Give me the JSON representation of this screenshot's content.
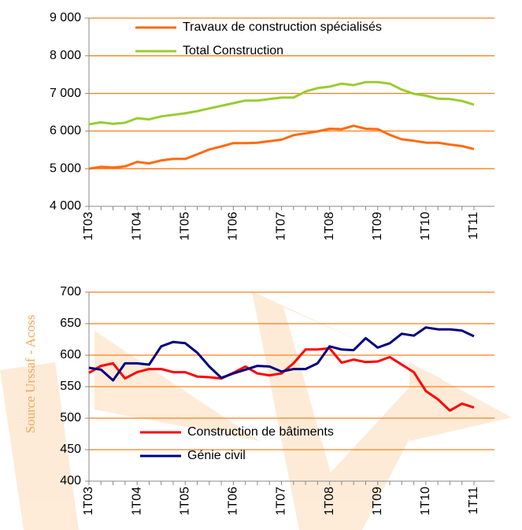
{
  "chart_data": [
    {
      "type": "line",
      "categories": [
        "1T03",
        null,
        null,
        null,
        "1T04",
        null,
        null,
        null,
        "1T05",
        null,
        null,
        null,
        "1T06",
        null,
        null,
        null,
        "1T07",
        null,
        null,
        null,
        "1T08",
        null,
        null,
        null,
        "1T09",
        null,
        null,
        null,
        "1T10",
        null,
        null,
        null,
        "1T11"
      ],
      "series": [
        {
          "name": "Travaux de construction spécialisés",
          "color": "#ff6a10",
          "values": [
            5000,
            5050,
            5030,
            5060,
            5180,
            5140,
            5220,
            5260,
            5260,
            5380,
            5510,
            5590,
            5680,
            5680,
            5690,
            5730,
            5770,
            5890,
            5940,
            5990,
            6060,
            6050,
            6140,
            6060,
            6050,
            5900,
            5780,
            5740,
            5690,
            5690,
            5640,
            5600,
            5520
          ]
        },
        {
          "name": "Total Construction",
          "color": "#99cc33",
          "values": [
            6180,
            6230,
            6190,
            6220,
            6340,
            6310,
            6390,
            6430,
            6470,
            6530,
            6600,
            6670,
            6740,
            6810,
            6810,
            6850,
            6890,
            6890,
            7050,
            7140,
            7180,
            7260,
            7220,
            7300,
            7300,
            7260,
            7100,
            6990,
            6940,
            6860,
            6850,
            6800,
            6700
          ]
        }
      ],
      "ylim": [
        4000,
        9000
      ],
      "yticks": [
        {
          "value": 4000,
          "label": "4 000"
        },
        {
          "value": 5000,
          "label": "5 000"
        },
        {
          "value": 6000,
          "label": "6 000"
        },
        {
          "value": 7000,
          "label": "7 000"
        },
        {
          "value": 8000,
          "label": "8 000"
        },
        {
          "value": 9000,
          "label": "9 000"
        }
      ],
      "grid": true,
      "grid_color": "#ff7f1a",
      "legend": "top"
    },
    {
      "type": "line",
      "categories": [
        "1T03",
        null,
        null,
        null,
        "1T04",
        null,
        null,
        null,
        "1T05",
        null,
        null,
        null,
        "1T06",
        null,
        null,
        null,
        "1T07",
        null,
        null,
        null,
        "1T08",
        null,
        null,
        null,
        "1T09",
        null,
        null,
        null,
        "1T10",
        null,
        null,
        null,
        "1T11"
      ],
      "series": [
        {
          "name": "Construction de bâtiments",
          "color": "#ff0000",
          "values": [
            572,
            583,
            587,
            563,
            573,
            578,
            578,
            573,
            573,
            566,
            565,
            563,
            572,
            582,
            571,
            568,
            571,
            587,
            609,
            609,
            611,
            588,
            593,
            589,
            590,
            597,
            585,
            573,
            543,
            530,
            512,
            523,
            517
          ]
        },
        {
          "name": "Génie civil",
          "color": "#000080",
          "values": [
            580,
            577,
            560,
            587,
            587,
            585,
            614,
            621,
            619,
            604,
            582,
            564,
            571,
            577,
            583,
            582,
            574,
            578,
            578,
            587,
            614,
            609,
            608,
            627,
            612,
            619,
            634,
            631,
            644,
            641,
            641,
            639,
            630
          ]
        }
      ],
      "ylim": [
        400,
        700
      ],
      "yticks": [
        400,
        450,
        500,
        550,
        600,
        650,
        700
      ],
      "grid": true,
      "grid_color": "#ff7f1a",
      "legend": "bottom"
    }
  ],
  "source": "Source Urssaf - Acoss"
}
